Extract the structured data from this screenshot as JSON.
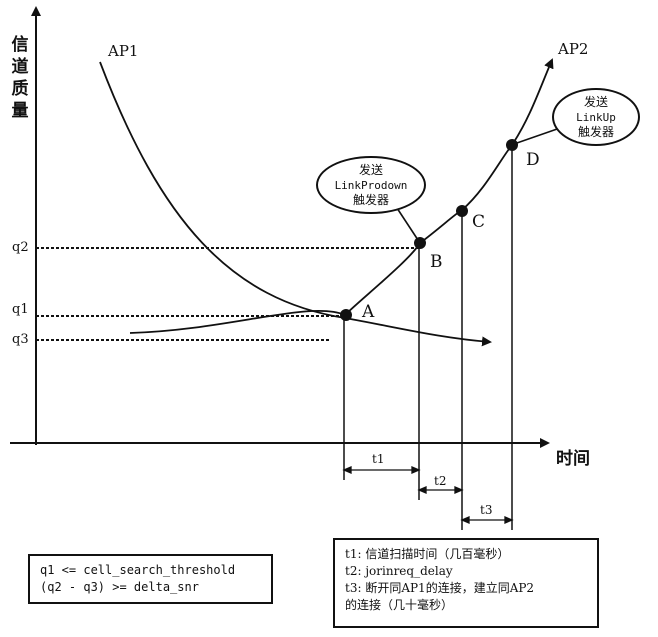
{
  "y_axis_title": [
    "信",
    "道",
    "质",
    "量"
  ],
  "x_axis_title": "时间",
  "curves": {
    "ap1": "AP1",
    "ap2": "AP2"
  },
  "levels": {
    "q2": "q2",
    "q1": "q1",
    "q3": "q3"
  },
  "points": {
    "a": "A",
    "b": "B",
    "c": "C",
    "d": "D"
  },
  "bubble_b": {
    "line1": "发送",
    "line2": "LinkProdown",
    "line3": "触发器"
  },
  "bubble_d": {
    "line1": "发送",
    "line2": "LinkUp",
    "line3": "触发器"
  },
  "intervals": {
    "t1": "t1",
    "t2": "t2",
    "t3": "t3"
  },
  "left_box": {
    "line1": "q1 <= cell_search_threshold",
    "line2": "(q2 - q3) >= delta_snr"
  },
  "right_box": {
    "line1": "t1: 信道扫描时间（几百毫秒）",
    "line2": "t2: jorinreq_delay",
    "line3": "t3: 断开同AP1的连接，建立同AP2",
    "line4": "的连接（几十毫秒）"
  }
}
